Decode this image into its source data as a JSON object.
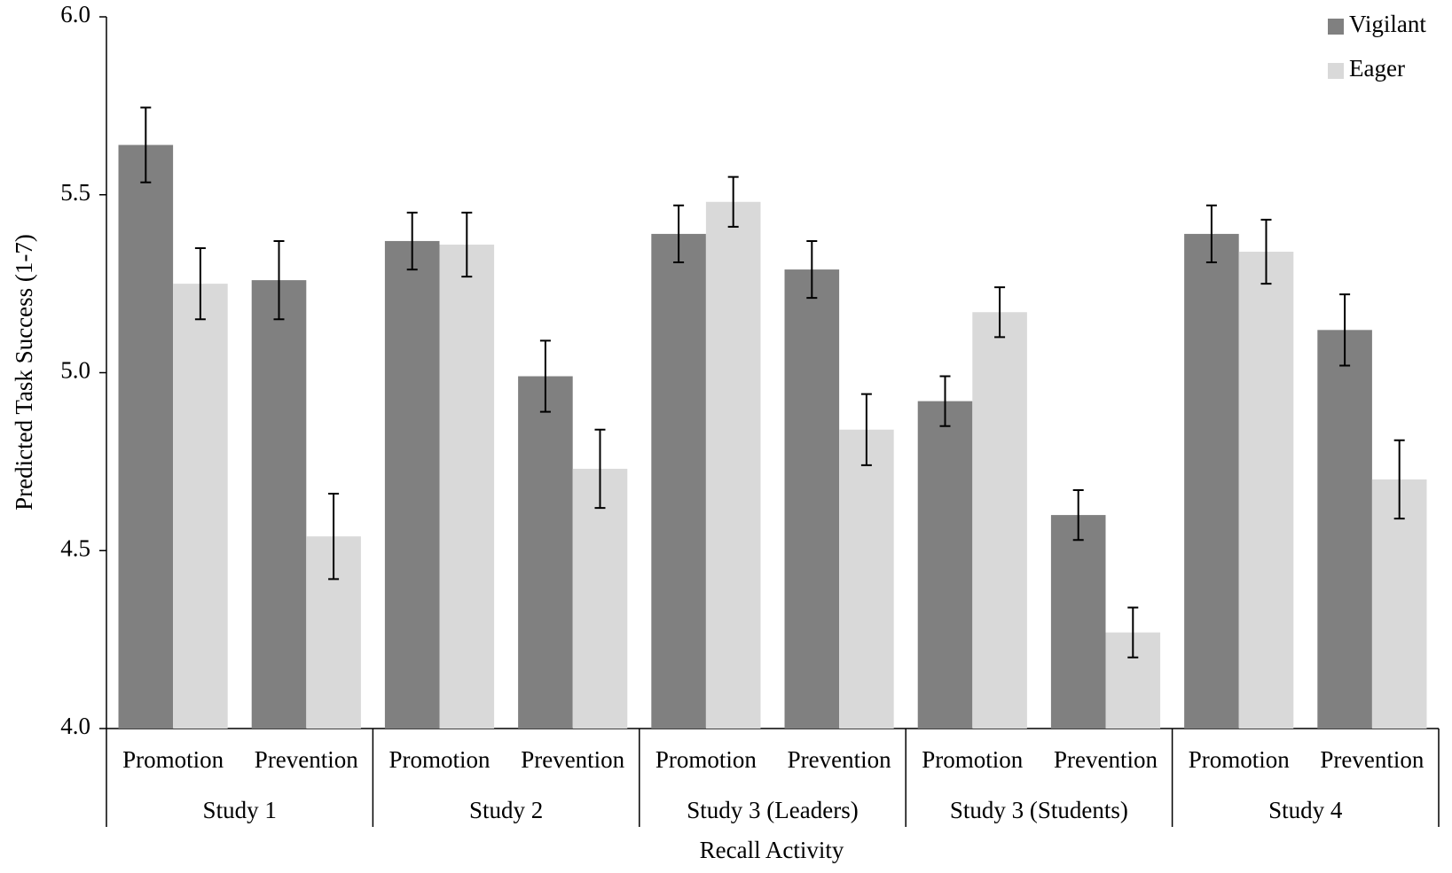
{
  "chart_data": {
    "type": "bar",
    "y_label": "Predicted Task Success (1-7)",
    "x_label": "Recall Activity",
    "groups": [
      {
        "name": "Study 1",
        "categories": [
          "Promotion",
          "Prevention"
        ]
      },
      {
        "name": "Study 2",
        "categories": [
          "Promotion",
          "Prevention"
        ]
      },
      {
        "name": "Study 3 (Leaders)",
        "categories": [
          "Promotion",
          "Prevention"
        ]
      },
      {
        "name": "Study 3 (Students)",
        "categories": [
          "Promotion",
          "Prevention"
        ]
      },
      {
        "name": "Study 4",
        "categories": [
          "Promotion",
          "Prevention"
        ]
      }
    ],
    "series": [
      {
        "name": "Vigilant",
        "color": "#808080",
        "values": [
          5.64,
          5.26,
          5.37,
          4.99,
          5.39,
          5.29,
          4.92,
          4.6,
          5.39,
          5.12
        ],
        "errors": [
          0.105,
          0.11,
          0.08,
          0.1,
          0.08,
          0.08,
          0.07,
          0.07,
          0.08,
          0.1
        ]
      },
      {
        "name": "Eager",
        "color": "#d9d9d9",
        "values": [
          5.25,
          4.54,
          5.36,
          4.73,
          5.48,
          4.84,
          5.17,
          4.27,
          5.34,
          4.7
        ],
        "errors": [
          0.1,
          0.12,
          0.09,
          0.11,
          0.07,
          0.1,
          0.07,
          0.07,
          0.09,
          0.11
        ]
      }
    ],
    "ylim": [
      4.0,
      6.0
    ],
    "yticks": [
      {
        "value": 4.0,
        "label": "4.0"
      },
      4.5,
      {
        "value": 5.0,
        "label": "5.0"
      },
      5.5,
      {
        "value": 6.0,
        "label": "6.0"
      }
    ],
    "legend": "top-right"
  }
}
